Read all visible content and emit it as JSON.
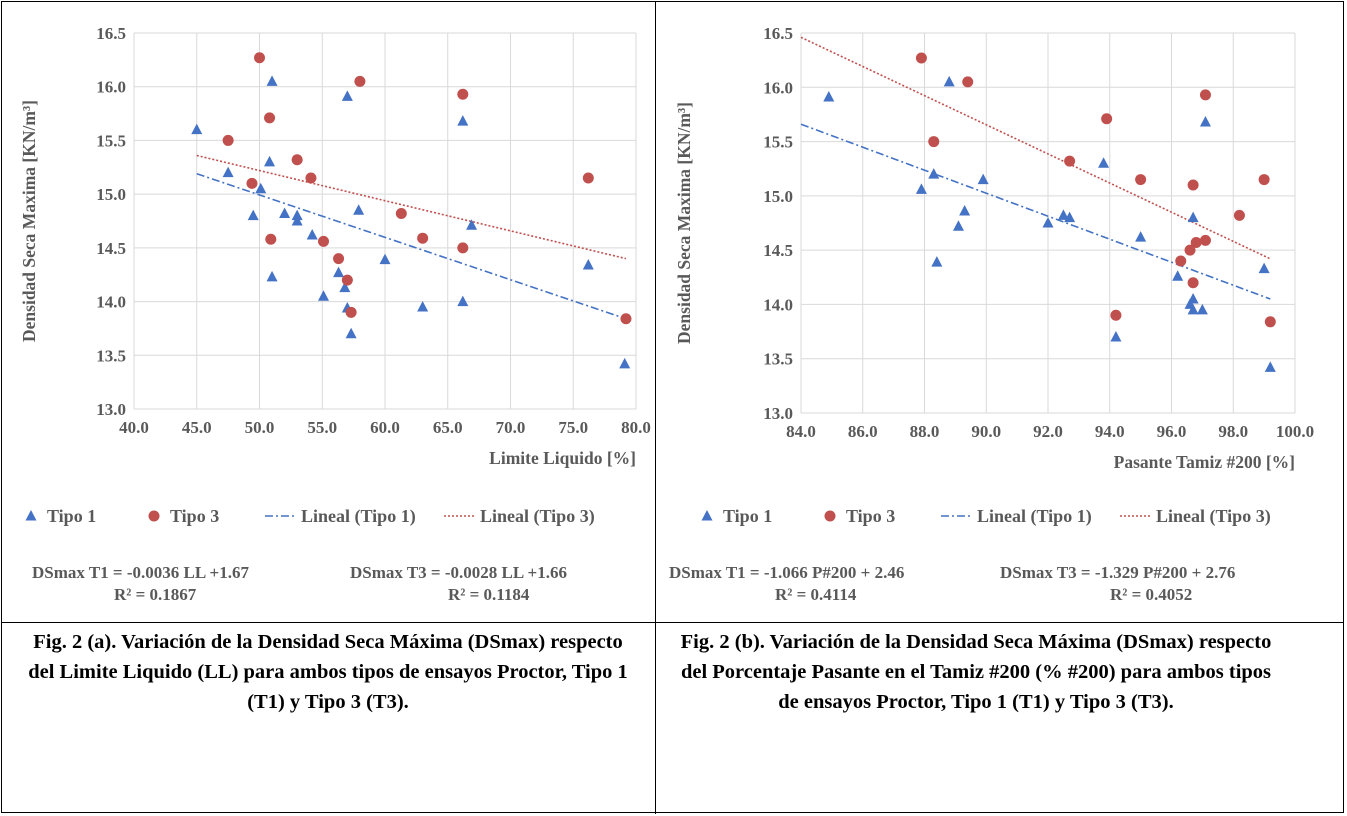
{
  "colors": {
    "tipo1": "#4472c4",
    "tipo3": "#c0504d",
    "grid": "#d9d9d9",
    "axis_text": "#595959"
  },
  "legend": {
    "tipo1": "Tipo 1",
    "tipo3": "Tipo 3",
    "lineal1": "Lineal (Tipo 1)",
    "lineal3": "Lineal (Tipo 3)"
  },
  "chart_data": [
    {
      "type": "scatter",
      "ylabel": "Densidad Seca Maxima [KN/m³]",
      "xlabel": "Limite Liquido [%]",
      "xlim": [
        40,
        80
      ],
      "ylim": [
        13,
        16.5
      ],
      "xticks": [
        "40.0",
        "45.0",
        "50.0",
        "55.0",
        "60.0",
        "65.0",
        "70.0",
        "75.0",
        "80.0"
      ],
      "yticks": [
        "13.0",
        "13.5",
        "14.0",
        "14.5",
        "15.0",
        "15.5",
        "16.0",
        "16.5"
      ],
      "grid": true,
      "legend_position": "bottom",
      "series": [
        {
          "name": "Tipo 1",
          "marker": "triangle",
          "points": [
            [
              45,
              15.6
            ],
            [
              47.5,
              15.2
            ],
            [
              49.5,
              14.8
            ],
            [
              50.1,
              15.05
            ],
            [
              50.8,
              15.3
            ],
            [
              51,
              16.05
            ],
            [
              51,
              14.23
            ],
            [
              52,
              14.82
            ],
            [
              53,
              14.8
            ],
            [
              53,
              14.75
            ],
            [
              54.2,
              14.62
            ],
            [
              55.1,
              14.05
            ],
            [
              56.3,
              14.27
            ],
            [
              56.8,
              14.13
            ],
            [
              57,
              15.91
            ],
            [
              57,
              13.94
            ],
            [
              57.3,
              13.7
            ],
            [
              57.9,
              14.85
            ],
            [
              60,
              14.39
            ],
            [
              63,
              13.95
            ],
            [
              66.2,
              15.68
            ],
            [
              66.2,
              14.0
            ],
            [
              66.9,
              14.71
            ],
            [
              76.2,
              14.34
            ],
            [
              79.1,
              13.42
            ]
          ]
        },
        {
          "name": "Tipo 3",
          "marker": "circle",
          "points": [
            [
              47.5,
              15.5
            ],
            [
              49.4,
              15.1
            ],
            [
              50,
              16.27
            ],
            [
              50.8,
              15.71
            ],
            [
              50.9,
              14.58
            ],
            [
              53,
              15.32
            ],
            [
              54.1,
              15.15
            ],
            [
              55.1,
              14.56
            ],
            [
              56.3,
              14.4
            ],
            [
              57,
              14.2
            ],
            [
              57.3,
              13.9
            ],
            [
              58,
              16.05
            ],
            [
              61.3,
              14.82
            ],
            [
              63,
              14.59
            ],
            [
              66.2,
              15.93
            ],
            [
              66.2,
              14.5
            ],
            [
              76.2,
              15.15
            ],
            [
              79.2,
              13.84
            ]
          ]
        },
        {
          "name": "Lineal (Tipo 1)",
          "type": "trendline",
          "points": [
            [
              45,
              15.19
            ],
            [
              79.2,
              13.84
            ]
          ]
        },
        {
          "name": "Lineal (Tipo 3)",
          "type": "trendline",
          "points": [
            [
              45,
              15.36
            ],
            [
              79.2,
              14.4
            ]
          ]
        }
      ],
      "equations": {
        "t1": "DSmax T1 = -0.0036 LL +1.67",
        "t3": "DSmax T3 = -0.0028 LL +1.66",
        "r2_t1": "R² = 0.1867",
        "r2_t3": "R² = 0.1184"
      }
    },
    {
      "type": "scatter",
      "ylabel": "Densidad Seca Maxima [KN/m³]",
      "xlabel": "Pasante Tamiz #200 [%]",
      "xlim": [
        84,
        100
      ],
      "ylim": [
        13,
        16.5
      ],
      "xticks": [
        "84.0",
        "86.0",
        "88.0",
        "90.0",
        "92.0",
        "94.0",
        "96.0",
        "98.0",
        "100.0"
      ],
      "yticks": [
        "13.0",
        "13.5",
        "14.0",
        "14.5",
        "15.0",
        "15.5",
        "16.0",
        "16.5"
      ],
      "grid": true,
      "legend_position": "bottom",
      "series": [
        {
          "name": "Tipo 1",
          "marker": "triangle",
          "points": [
            [
              84.9,
              15.91
            ],
            [
              87.9,
              15.06
            ],
            [
              88.3,
              15.2
            ],
            [
              88.4,
              14.39
            ],
            [
              88.8,
              16.05
            ],
            [
              89.1,
              14.72
            ],
            [
              89.3,
              14.86
            ],
            [
              89.9,
              15.15
            ],
            [
              92,
              14.75
            ],
            [
              92.5,
              14.82
            ],
            [
              92.7,
              14.8
            ],
            [
              93.8,
              15.3
            ],
            [
              95,
              14.62
            ],
            [
              96.2,
              14.26
            ],
            [
              96.6,
              14.0
            ],
            [
              96.7,
              14.8
            ],
            [
              96.7,
              14.05
            ],
            [
              96.7,
              13.95
            ],
            [
              97,
              13.95
            ],
            [
              97.1,
              15.68
            ],
            [
              94.2,
              13.7
            ],
            [
              99,
              14.33
            ],
            [
              99.2,
              13.42
            ]
          ]
        },
        {
          "name": "Tipo 3",
          "marker": "circle",
          "points": [
            [
              87.9,
              16.27
            ],
            [
              88.3,
              15.5
            ],
            [
              89.4,
              16.05
            ],
            [
              92.7,
              15.32
            ],
            [
              93.9,
              15.71
            ],
            [
              95,
              15.15
            ],
            [
              94.2,
              13.9
            ],
            [
              96.3,
              14.4
            ],
            [
              96.6,
              14.5
            ],
            [
              96.7,
              15.1
            ],
            [
              96.7,
              14.2
            ],
            [
              96.8,
              14.57
            ],
            [
              97.1,
              14.59
            ],
            [
              97.1,
              15.93
            ],
            [
              98.2,
              14.82
            ],
            [
              99,
              15.15
            ],
            [
              99.2,
              13.84
            ]
          ]
        },
        {
          "name": "Lineal (Tipo 1)",
          "type": "trendline",
          "points": [
            [
              84,
              15.66
            ],
            [
              99.2,
              14.05
            ]
          ]
        },
        {
          "name": "Lineal (Tipo 3)",
          "type": "trendline",
          "points": [
            [
              84,
              16.46
            ],
            [
              99.2,
              14.42
            ]
          ]
        }
      ],
      "equations": {
        "t1": "DSmax T1 = -1.066 P#200 + 2.46",
        "t3": "DSmax T3 = -1.329 P#200 + 2.76",
        "r2_t1": "R² = 0.4114",
        "r2_t3": "R² = 0.4052"
      }
    }
  ],
  "captions": {
    "a": "Fig. 2 (a). Variación de la Densidad Seca Máxima (DSmax) respecto del Limite Liquido (LL) para ambos tipos de ensayos Proctor, Tipo 1 (T1) y Tipo 3 (T3).",
    "b": "Fig. 2 (b). Variación de la Densidad Seca Máxima (DSmax) respecto del Porcentaje Pasante en el Tamiz #200 (% #200) para ambos tipos de ensayos Proctor, Tipo 1 (T1) y Tipo 3 (T3)."
  }
}
